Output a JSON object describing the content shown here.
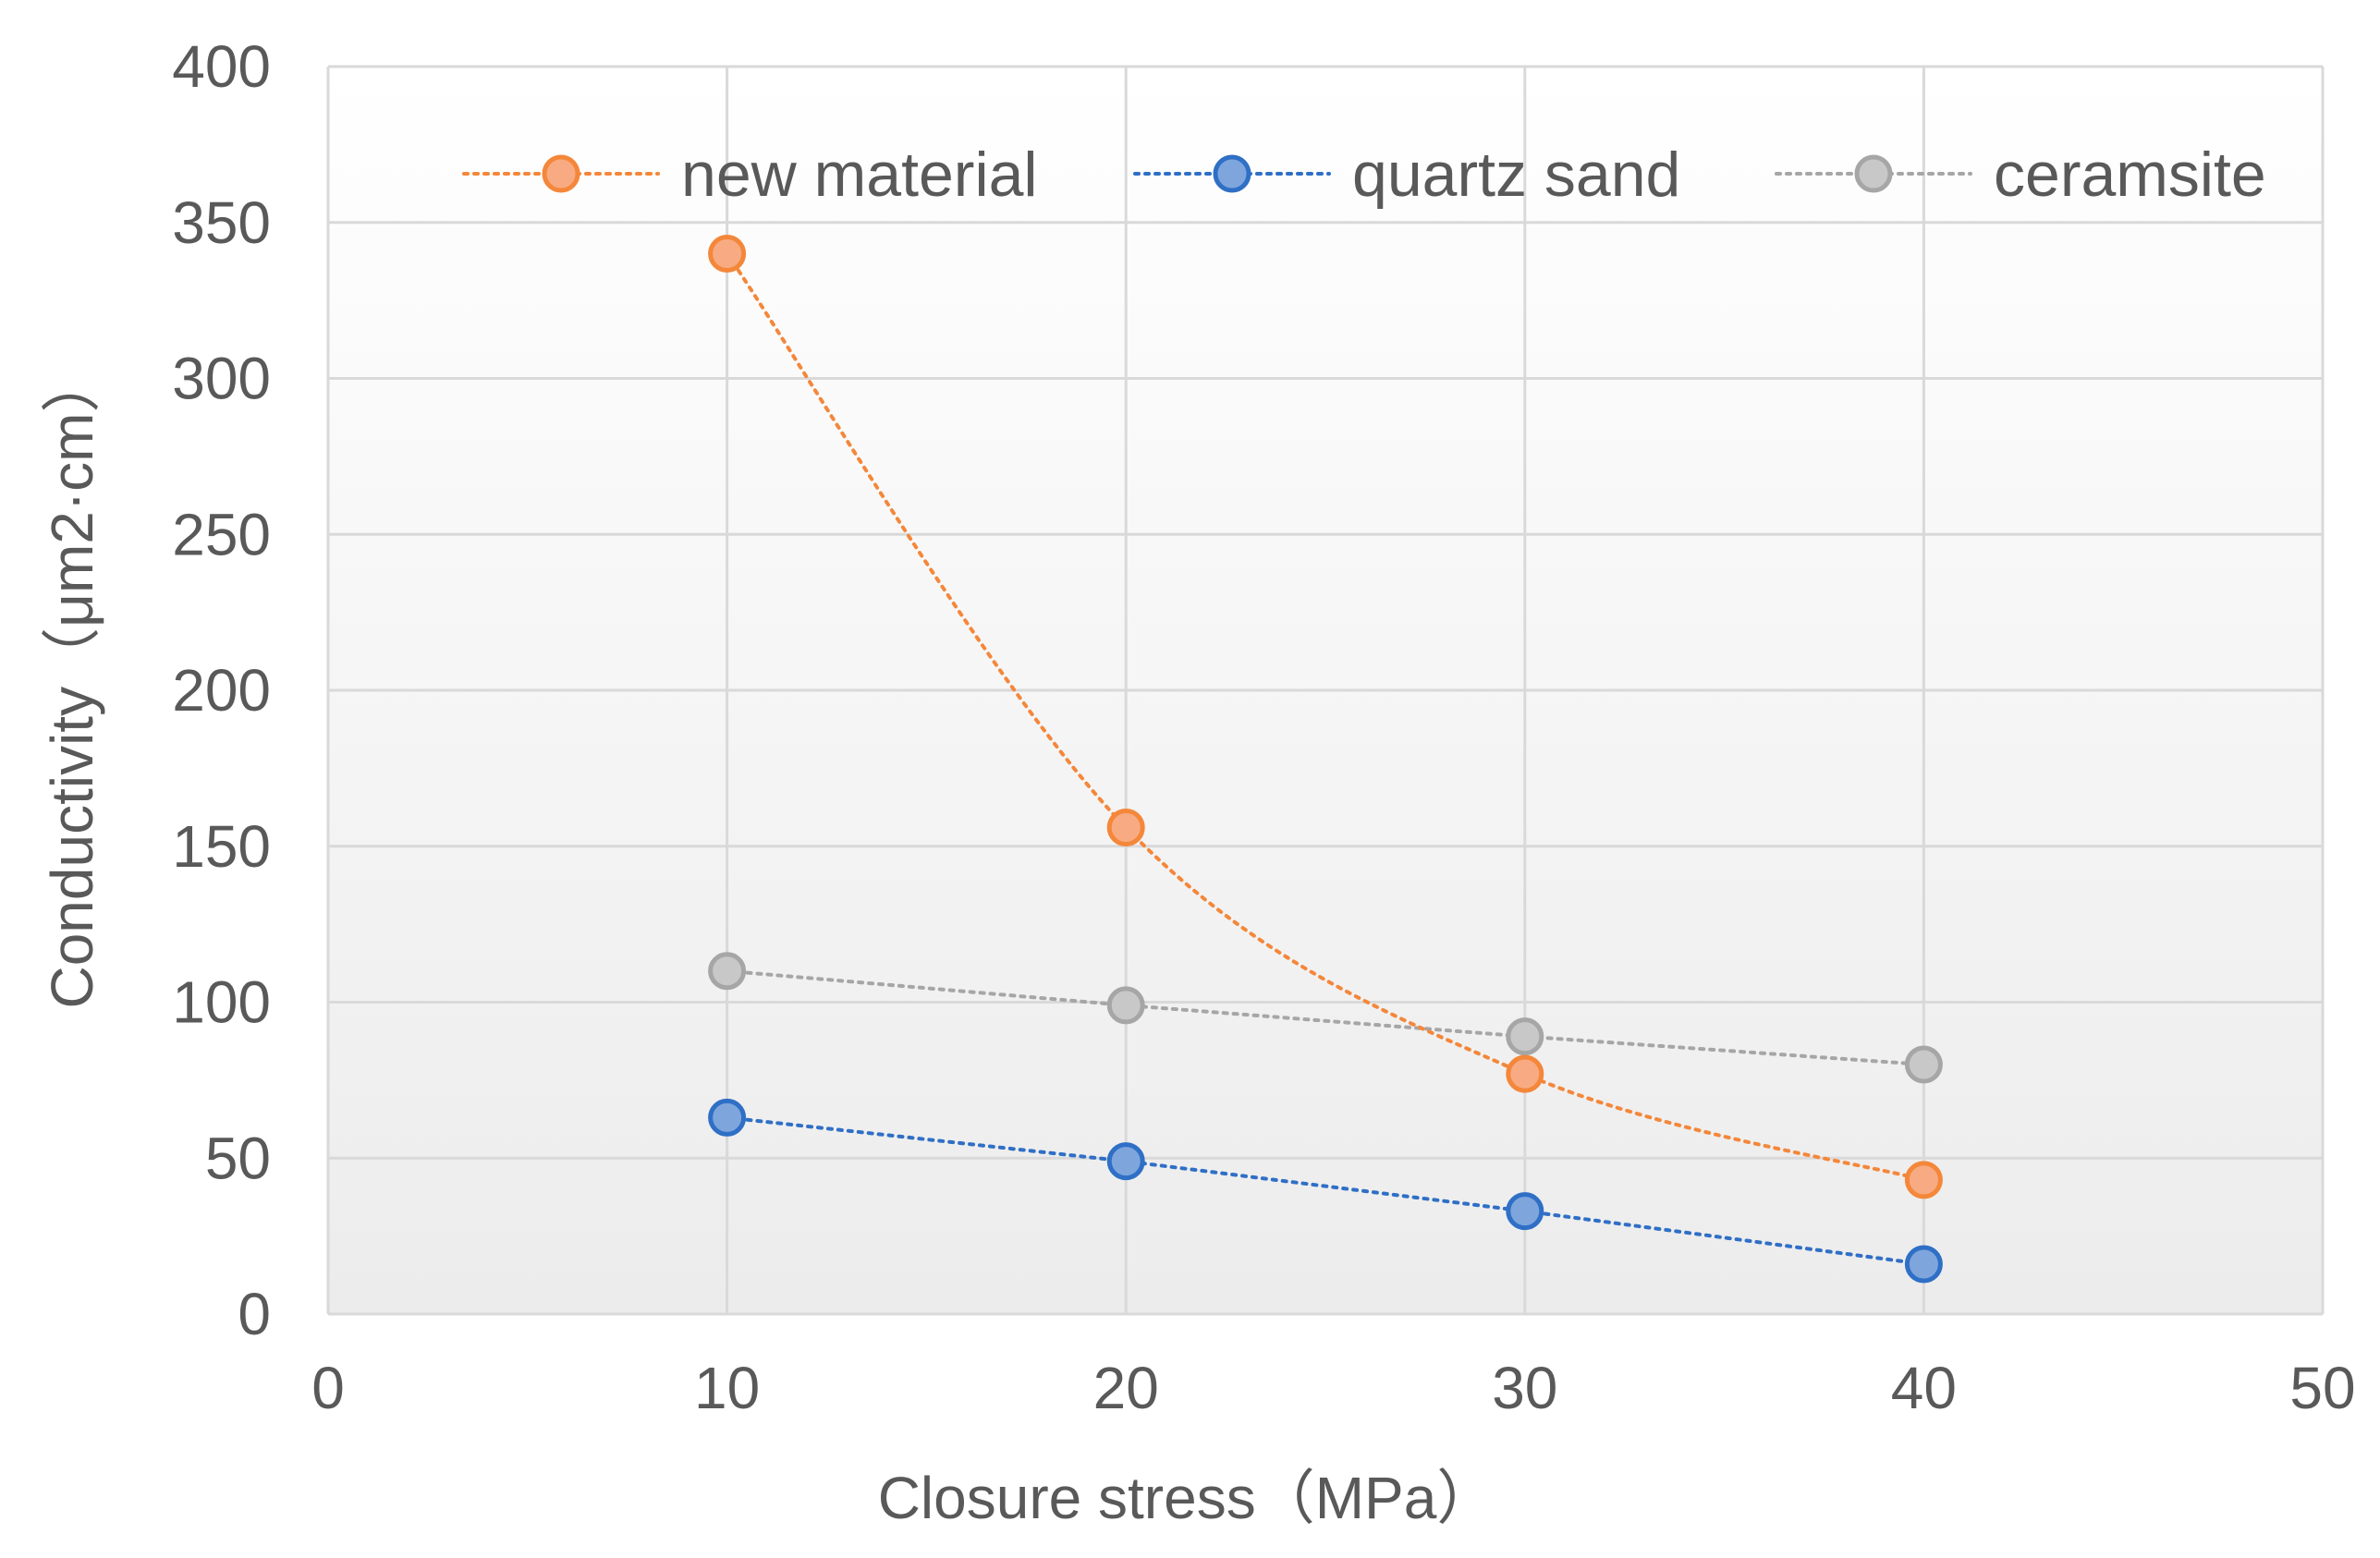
{
  "chart_data": {
    "type": "scatter",
    "title": "",
    "xlabel": "Closure stress（MPa）",
    "ylabel": "Conductivity（μm2·cm）",
    "xlim": [
      0,
      50
    ],
    "ylim": [
      0,
      400
    ],
    "xticks": [
      0,
      10,
      20,
      30,
      40,
      50
    ],
    "yticks": [
      0,
      50,
      100,
      150,
      200,
      250,
      300,
      350,
      400
    ],
    "grid": true,
    "legend_position": "top",
    "series": [
      {
        "name": "new material",
        "color": "#f4873a",
        "fill": "#f8ab82",
        "line": "dotted-smooth",
        "x": [
          10,
          20,
          30,
          40
        ],
        "y": [
          340,
          156,
          77,
          43
        ]
      },
      {
        "name": "quartz sand",
        "color": "#2f6fc6",
        "fill": "#7ea6dc",
        "line": "dotted",
        "x": [
          10,
          20,
          30,
          40
        ],
        "y": [
          63,
          49,
          33,
          16
        ]
      },
      {
        "name": "ceramsite",
        "color": "#a6a6a6",
        "fill": "#c8c8c8",
        "line": "dotted",
        "x": [
          10,
          20,
          30,
          40
        ],
        "y": [
          110,
          99,
          89,
          80
        ]
      }
    ]
  }
}
